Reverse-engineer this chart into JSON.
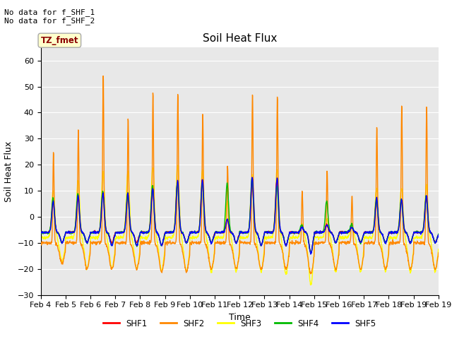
{
  "title": "Soil Heat Flux",
  "xlabel": "Time",
  "ylabel": "Soil Heat Flux",
  "ylim": [
    -30,
    65
  ],
  "yticks": [
    -30,
    -20,
    -10,
    0,
    10,
    20,
    30,
    40,
    50,
    60
  ],
  "n_days": 16,
  "n_points_per_day": 96,
  "series_colors": {
    "SHF1": "#ff0000",
    "SHF2": "#ff8800",
    "SHF3": "#ffff00",
    "SHF4": "#00bb00",
    "SHF5": "#0000ff"
  },
  "series_lw": 1.0,
  "annotation_text": "No data for f_SHF_1\nNo data for f_SHF_2",
  "tz_label": "TZ_fmet",
  "bg_color": "#ffffff",
  "plot_bg_color": "#e8e8e8",
  "grid_color": "#ffffff",
  "x_tick_labels": [
    "Feb 4",
    "Feb 5",
    "Feb 6",
    "Feb 7",
    "Feb 8",
    "Feb 9",
    "Feb 10",
    "Feb 11",
    "Feb 12",
    "Feb 13",
    "Feb 14",
    "Feb 15",
    "Feb 16",
    "Feb 17",
    "Feb 18",
    "Feb 19",
    "Feb 19"
  ],
  "legend_labels": [
    "SHF1",
    "SHF2",
    "SHF3",
    "SHF4",
    "SHF5"
  ],
  "legend_colors": [
    "#ff0000",
    "#ff8800",
    "#ffff00",
    "#00bb00",
    "#0000ff"
  ]
}
